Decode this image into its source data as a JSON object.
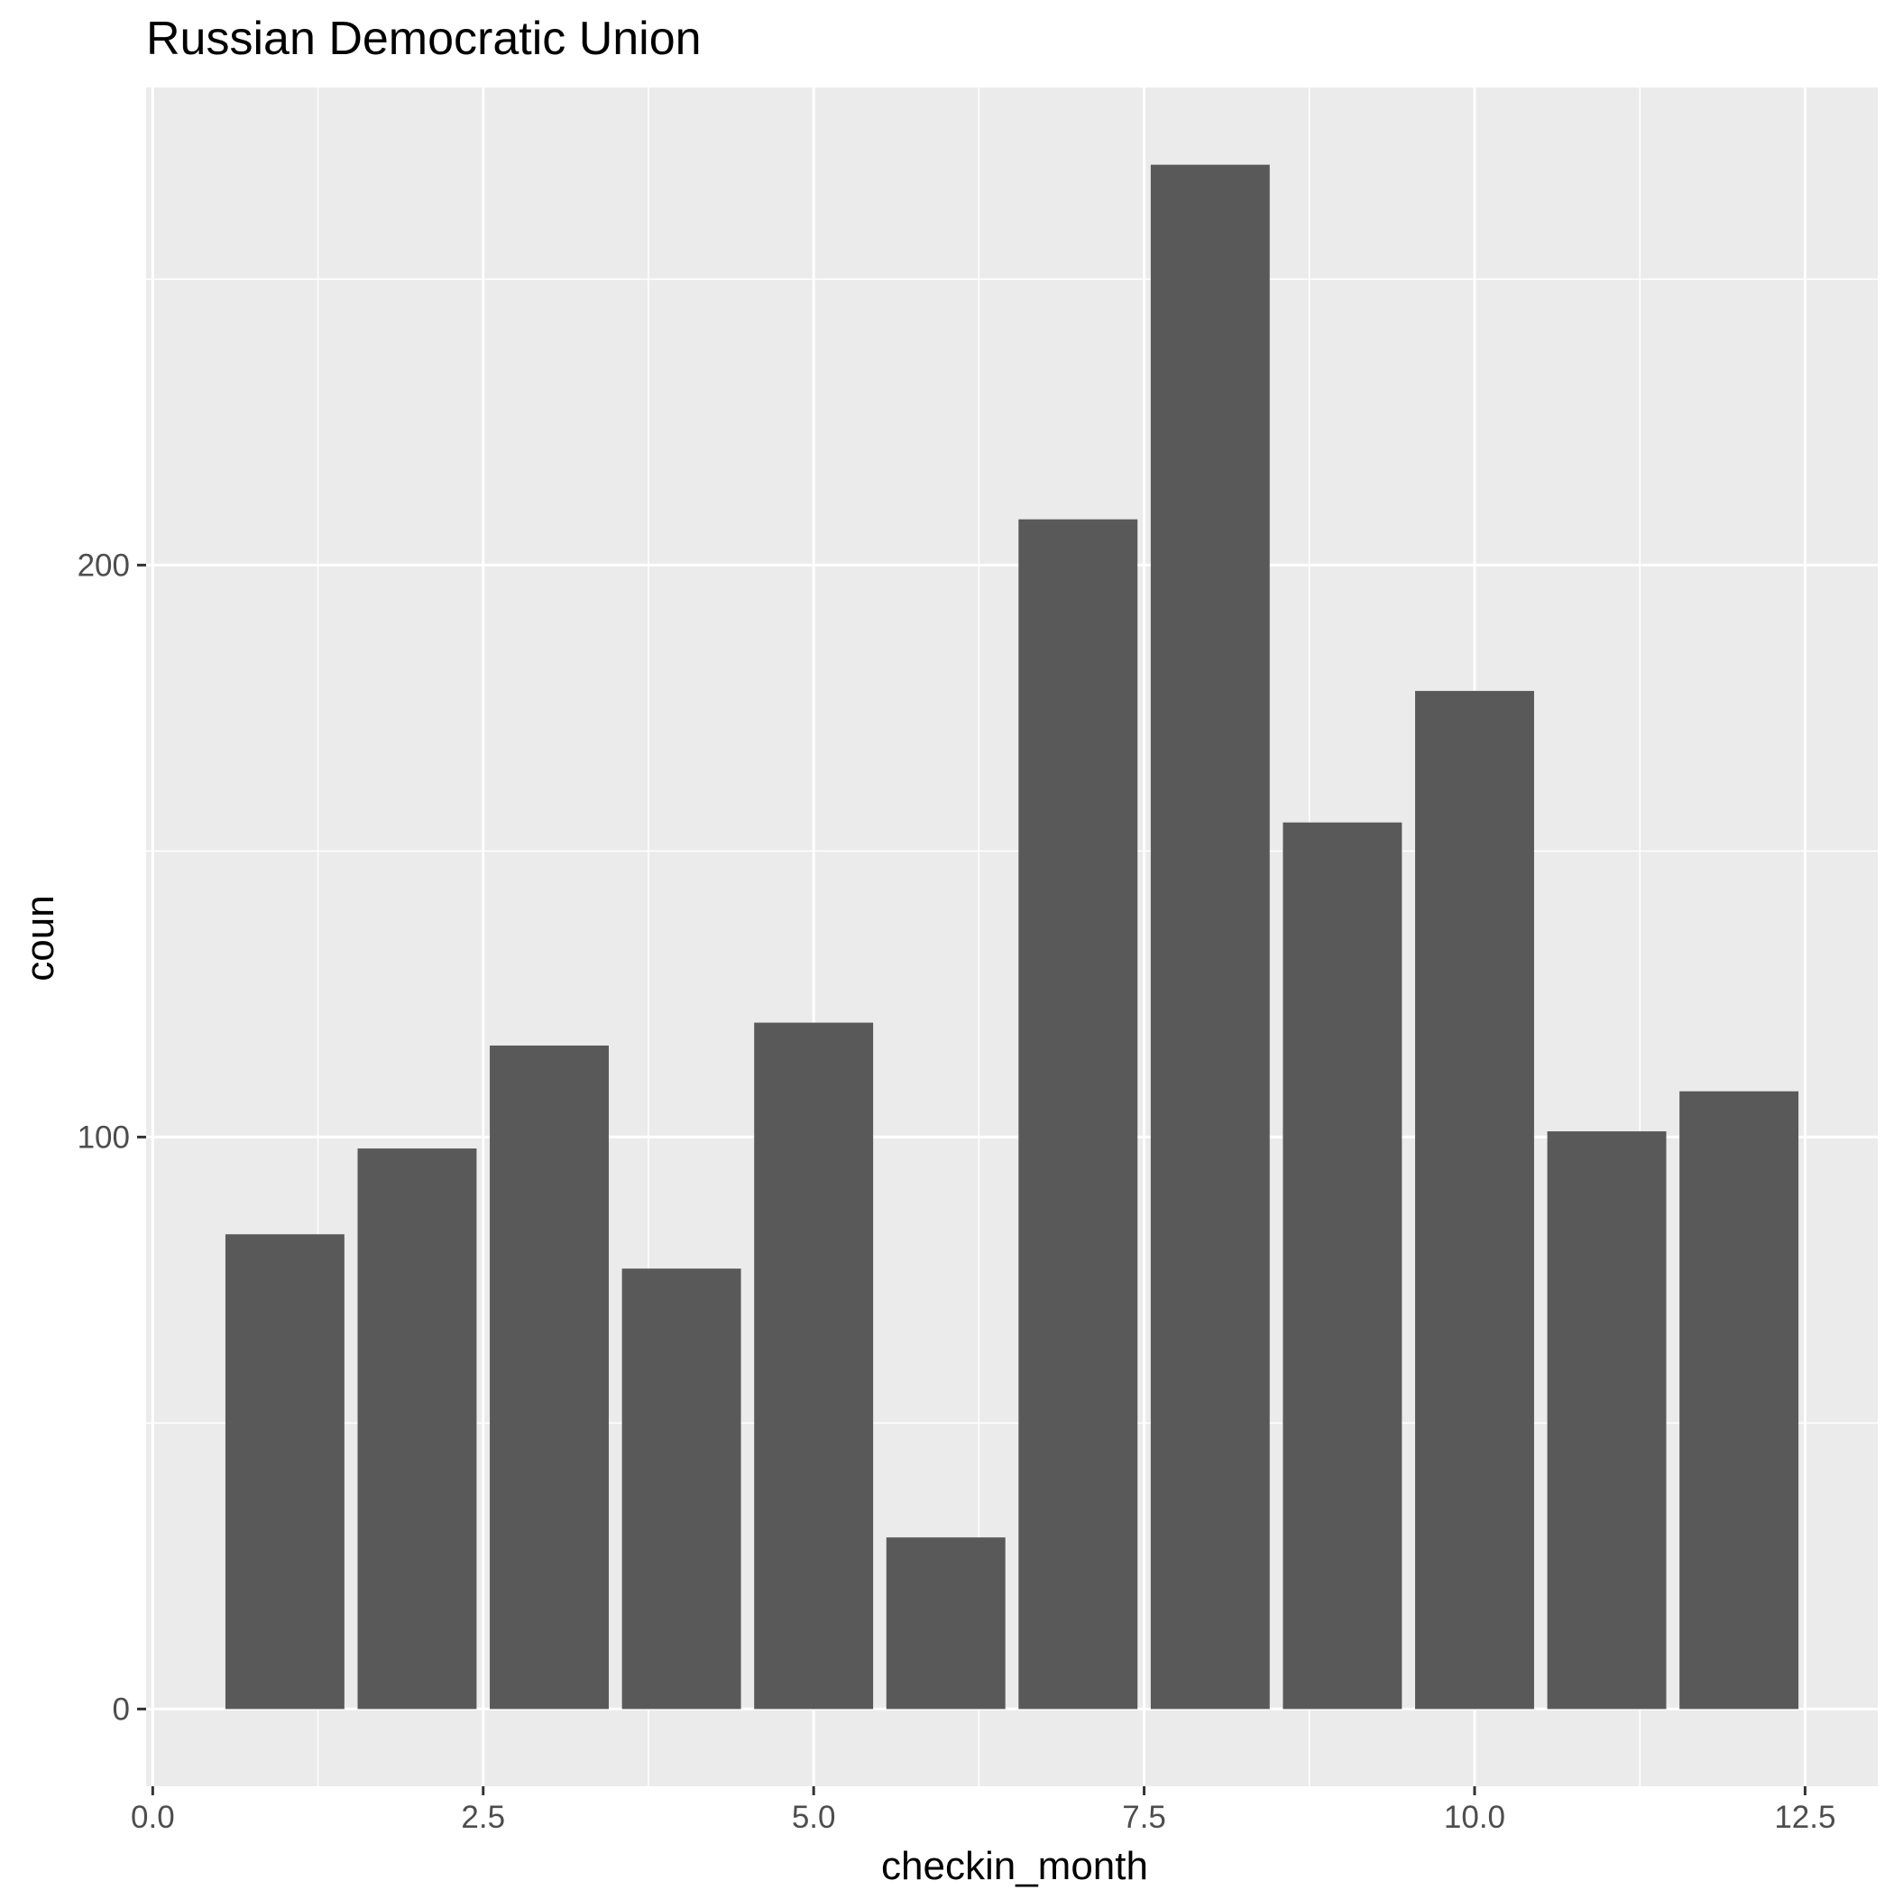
{
  "chart_data": {
    "type": "bar",
    "title": "Russian Democratic Union",
    "xlabel": "checkin_month",
    "ylabel": "coun",
    "x": [
      1,
      2,
      3,
      4,
      5,
      6,
      7,
      8,
      9,
      10,
      11,
      12
    ],
    "values": [
      83,
      98,
      116,
      77,
      120,
      30,
      208,
      270,
      155,
      178,
      101,
      108
    ],
    "bar_width": 0.9,
    "xlim": [
      -0.05,
      13.05
    ],
    "ylim": [
      -13.5,
      283.5
    ],
    "x_ticks": [
      0,
      2.5,
      5,
      7.5,
      10,
      12.5
    ],
    "x_tick_labels": [
      "0.0",
      "2.5",
      "5.0",
      "7.5",
      "10.0",
      "12.5"
    ],
    "y_ticks": [
      0,
      100,
      200
    ],
    "y_tick_labels": [
      "0",
      "100",
      "200"
    ],
    "bar_color": "#595959",
    "panel_background": "#ebebeb",
    "grid_color": "#ffffff",
    "grid": true,
    "legend": "none"
  }
}
